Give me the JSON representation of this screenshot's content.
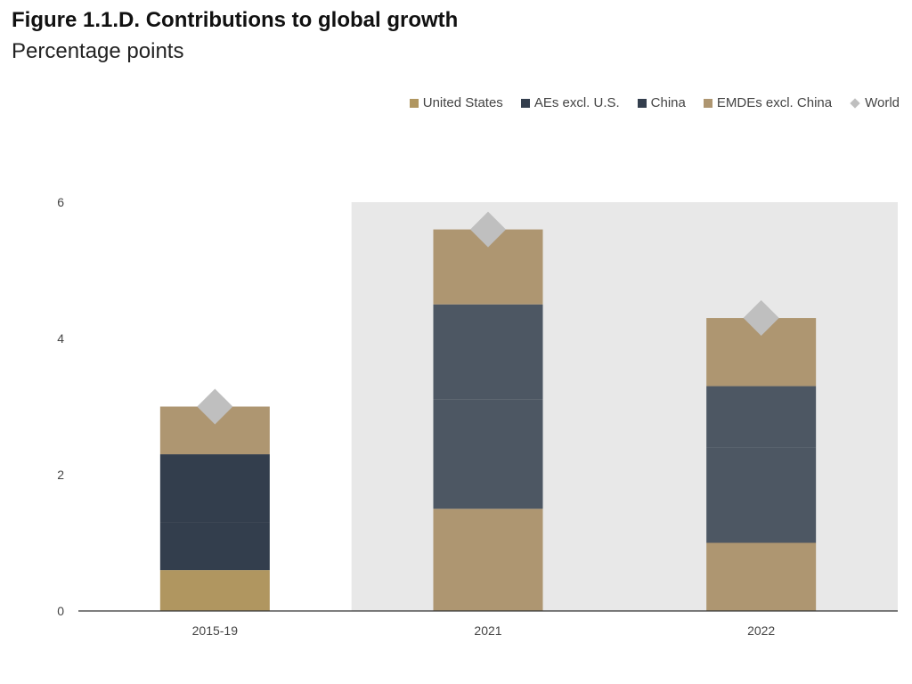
{
  "header": {
    "title": "Figure 1.1.D. Contributions to global growth",
    "subtitle": "Percentage points"
  },
  "chart_data": {
    "type": "bar",
    "stacked": true,
    "title": "Figure 1.1.D. Contributions to global growth",
    "subtitle": "Percentage points",
    "categories": [
      "2015-19",
      "2021",
      "2022"
    ],
    "shaded_categories": [
      "2021",
      "2022"
    ],
    "series": [
      {
        "name": "United States",
        "values": [
          0.6,
          1.5,
          1.0
        ],
        "color": "#AE9671",
        "first_color": "#B09660"
      },
      {
        "name": "AEs excl. U.S.",
        "values": [
          0.7,
          1.6,
          1.4
        ],
        "color": "#4D5763",
        "first_color": "#333E4D"
      },
      {
        "name": "China",
        "values": [
          1.0,
          1.4,
          0.9
        ],
        "color": "#4D5763",
        "first_color": "#333E4D"
      },
      {
        "name": "EMDEs excl. China",
        "values": [
          0.7,
          1.1,
          1.0
        ],
        "color": "#AE9671",
        "first_color": "#AE9671"
      }
    ],
    "world": {
      "name": "World",
      "values": [
        3.0,
        5.6,
        4.3
      ],
      "color": "#BFBFBF"
    },
    "ylim": [
      0,
      6
    ],
    "yticks": [
      0,
      2,
      4,
      6
    ],
    "legend_position": "top-right",
    "grid": false
  }
}
